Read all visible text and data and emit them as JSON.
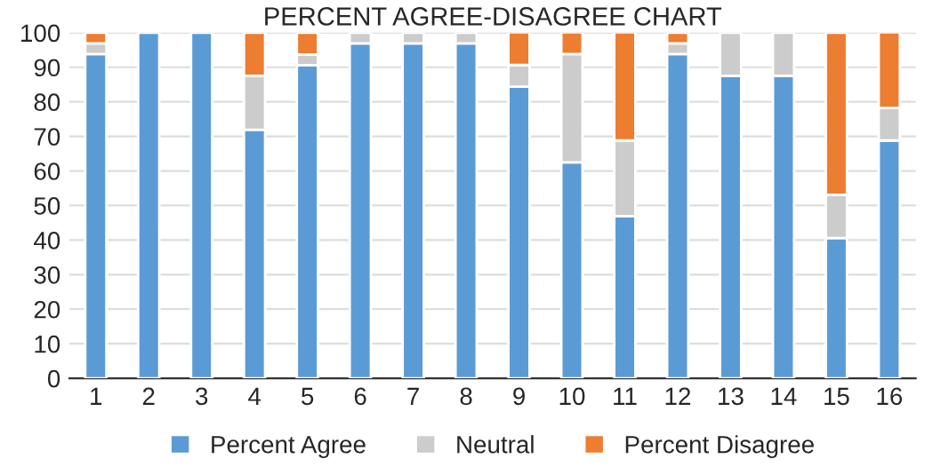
{
  "chart_data": {
    "type": "bar",
    "title": "PERCENT AGREE-DISAGREE CHART",
    "stacked": true,
    "categories": [
      "1",
      "2",
      "3",
      "4",
      "5",
      "6",
      "7",
      "8",
      "9",
      "10",
      "11",
      "12",
      "13",
      "14",
      "15",
      "16"
    ],
    "series": [
      {
        "name": "Percent Agree",
        "color": "#5b9bd5",
        "values": [
          93.8,
          100,
          100,
          71.9,
          90.6,
          96.9,
          96.9,
          96.9,
          84.4,
          62.5,
          46.9,
          93.8,
          87.5,
          87.5,
          40.6,
          68.8
        ]
      },
      {
        "name": "Neutral",
        "color": "#cccccc",
        "values": [
          3.1,
          0,
          0,
          15.6,
          3.1,
          3.1,
          3.1,
          3.1,
          6.3,
          31.3,
          21.9,
          3.1,
          12.5,
          12.5,
          12.5,
          9.4
        ]
      },
      {
        "name": "Percent Disagree",
        "color": "#ed7d31",
        "values": [
          3.1,
          0,
          0,
          12.5,
          6.3,
          0,
          0,
          0,
          9.4,
          6.3,
          31.3,
          3.1,
          0,
          0,
          46.9,
          21.9
        ]
      }
    ],
    "ylim": [
      0,
      100
    ],
    "yticks": [
      0,
      10,
      20,
      30,
      40,
      50,
      60,
      70,
      80,
      90,
      100
    ],
    "grid": "y",
    "legend": "bottom"
  }
}
